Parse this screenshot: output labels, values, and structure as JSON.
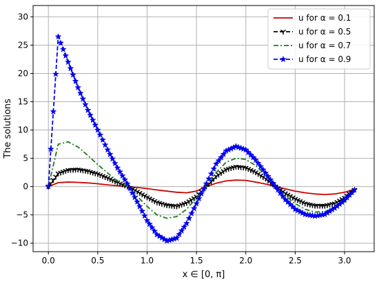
{
  "chart_data": {
    "type": "line",
    "xlabel": "x ∈ [0, π]",
    "ylabel": "The solutions",
    "xlim": [
      -0.155,
      3.3
    ],
    "ylim": [
      -11.5,
      32.0
    ],
    "x_ticks": [
      0.0,
      0.5,
      1.0,
      1.5,
      2.0,
      2.5,
      3.0
    ],
    "x_tick_labels": [
      "0.0",
      "0.5",
      "1.0",
      "1.5",
      "2.0",
      "2.5",
      "3.0"
    ],
    "y_ticks": [
      -10,
      -5,
      0,
      5,
      10,
      15,
      20,
      25,
      30
    ],
    "y_tick_labels": [
      "−10",
      "−5",
      "0",
      "5",
      "10",
      "15",
      "20",
      "25",
      "30"
    ],
    "grid": true,
    "legend_position": "top-right",
    "x": [
      0.0,
      0.1,
      0.2,
      0.3,
      0.4,
      0.5,
      0.6,
      0.7,
      0.8,
      0.9,
      1.0,
      1.1,
      1.2,
      1.3,
      1.4,
      1.5,
      1.6,
      1.7,
      1.8,
      1.9,
      2.0,
      2.1,
      2.2,
      2.3,
      2.4,
      2.5,
      2.6,
      2.7,
      2.8,
      2.9,
      3.0,
      3.1
    ],
    "series": [
      {
        "name": "u for α = 0.1",
        "color": "#cc0000",
        "style": "solid",
        "marker": "none",
        "values": [
          0.0,
          0.7,
          0.8,
          0.75,
          0.65,
          0.5,
          0.3,
          0.15,
          0.0,
          -0.15,
          -0.35,
          -0.6,
          -0.8,
          -1.0,
          -1.1,
          -0.8,
          0.0,
          0.6,
          1.0,
          1.15,
          1.1,
          0.8,
          0.45,
          0.0,
          -0.4,
          -0.8,
          -1.1,
          -1.3,
          -1.4,
          -1.3,
          -1.0,
          -0.5
        ]
      },
      {
        "name": "u for α = 0.5",
        "color": "#000000",
        "style": "dashed",
        "marker": "tri",
        "values": [
          0.0,
          2.3,
          2.9,
          3.0,
          2.7,
          2.2,
          1.5,
          0.7,
          0.0,
          -0.9,
          -1.9,
          -2.8,
          -3.3,
          -3.5,
          -2.9,
          -1.8,
          0.0,
          1.8,
          3.0,
          3.5,
          3.3,
          2.5,
          1.4,
          0.0,
          -1.2,
          -2.2,
          -3.0,
          -3.4,
          -3.4,
          -3.0,
          -2.0,
          -0.6
        ]
      },
      {
        "name": "u for α = 0.7",
        "color": "#1a7a1a",
        "style": "dashdot",
        "marker": "none",
        "values": [
          0.0,
          7.5,
          7.9,
          7.0,
          5.5,
          3.9,
          2.4,
          1.0,
          0.0,
          -1.7,
          -3.5,
          -5.0,
          -5.6,
          -5.3,
          -4.0,
          -2.0,
          0.0,
          2.5,
          4.3,
          5.0,
          4.8,
          3.7,
          2.0,
          0.0,
          -1.6,
          -3.0,
          -4.0,
          -4.5,
          -4.4,
          -3.9,
          -2.7,
          -0.7
        ]
      },
      {
        "name": "u for α = 0.9",
        "color": "#0000ee",
        "style": "dashed",
        "marker": "star",
        "values": [
          0.0,
          26.5,
          22.0,
          17.5,
          13.5,
          10.0,
          6.5,
          3.3,
          0.5,
          -2.7,
          -6.0,
          -8.5,
          -9.6,
          -9.1,
          -6.5,
          -3.0,
          0.5,
          4.0,
          6.3,
          7.1,
          6.5,
          4.7,
          2.4,
          0.0,
          -2.3,
          -4.0,
          -4.9,
          -5.2,
          -4.9,
          -3.8,
          -2.4,
          -0.6
        ]
      }
    ]
  }
}
